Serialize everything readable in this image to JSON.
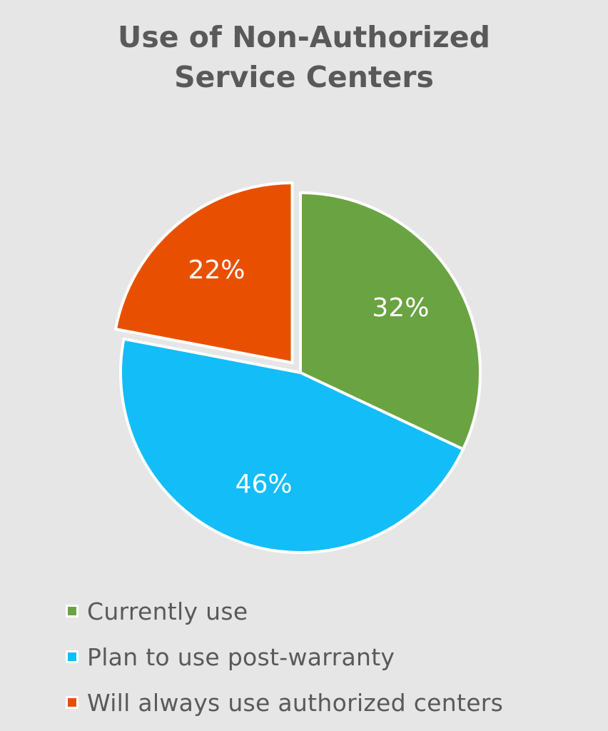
{
  "chart_data": {
    "type": "pie",
    "title": "Use of Non-Authorized Service Centers",
    "title_lines": [
      "Use of Non-Authorized",
      "Service Centers"
    ],
    "slices": [
      {
        "label": "Currently use",
        "value": 32,
        "data_label": "32%",
        "color": "#6aa341",
        "exploded": false
      },
      {
        "label": "Plan to use post-warranty",
        "value": 46,
        "data_label": "46%",
        "color": "#13bdf8",
        "exploded": false
      },
      {
        "label": "Will always use authorized centers",
        "value": 22,
        "data_label": "22%",
        "color": "#e85000",
        "exploded": true
      }
    ],
    "start_angle": "12 o'clock",
    "direction": "clockwise",
    "legend": "bottom-left"
  },
  "colors": {
    "background": "#e6e6e6",
    "title": "#595959",
    "legend_text": "#595959",
    "data_label": "#ffffff",
    "slice_border": "#ffffff"
  }
}
